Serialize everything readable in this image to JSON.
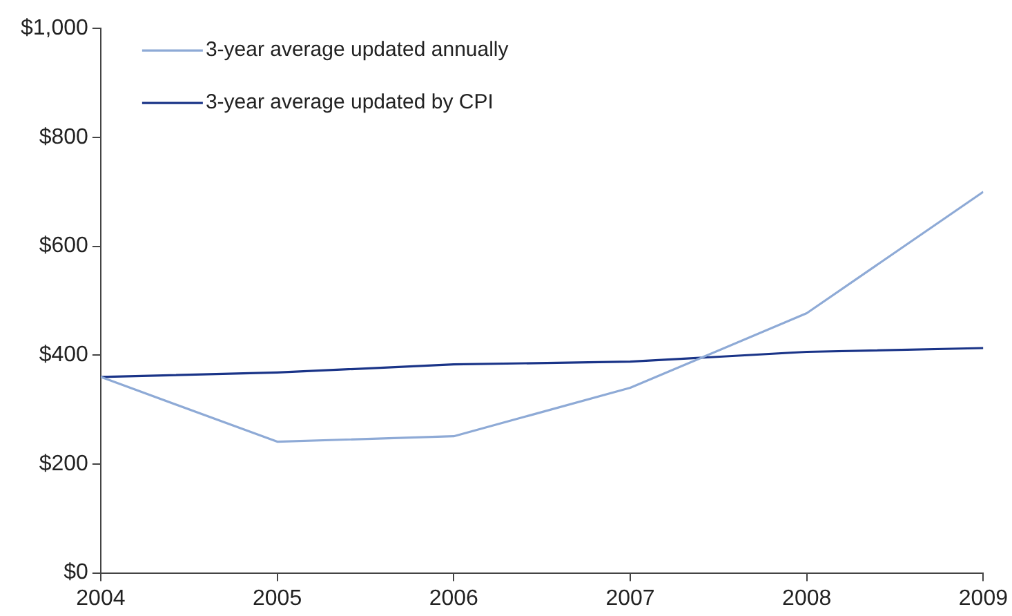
{
  "chart_data": {
    "type": "line",
    "x": [
      2004,
      2005,
      2006,
      2007,
      2008,
      2009
    ],
    "series": [
      {
        "name": "3-year average updated annually",
        "color": "#8eaad6",
        "values": [
          360,
          241,
          251,
          340,
          477,
          700
        ]
      },
      {
        "name": "3-year average updated by CPI",
        "color": "#1a3488",
        "values": [
          360,
          368,
          383,
          388,
          406,
          413
        ]
      }
    ],
    "xlim": [
      2004,
      2009
    ],
    "xticks": [
      2004,
      2005,
      2006,
      2007,
      2008,
      2009
    ],
    "ylim": [
      0,
      1000
    ],
    "yticks": [
      {
        "value": 0,
        "label": "$0"
      },
      {
        "value": 200,
        "label": "$200"
      },
      {
        "value": 400,
        "label": "$400"
      },
      {
        "value": 600,
        "label": "$600"
      },
      {
        "value": 800,
        "label": "$800"
      },
      {
        "value": 1000,
        "label": "$1,000"
      }
    ],
    "grid": false,
    "legend": "top left",
    "marker": "none",
    "line_style": "solid"
  }
}
